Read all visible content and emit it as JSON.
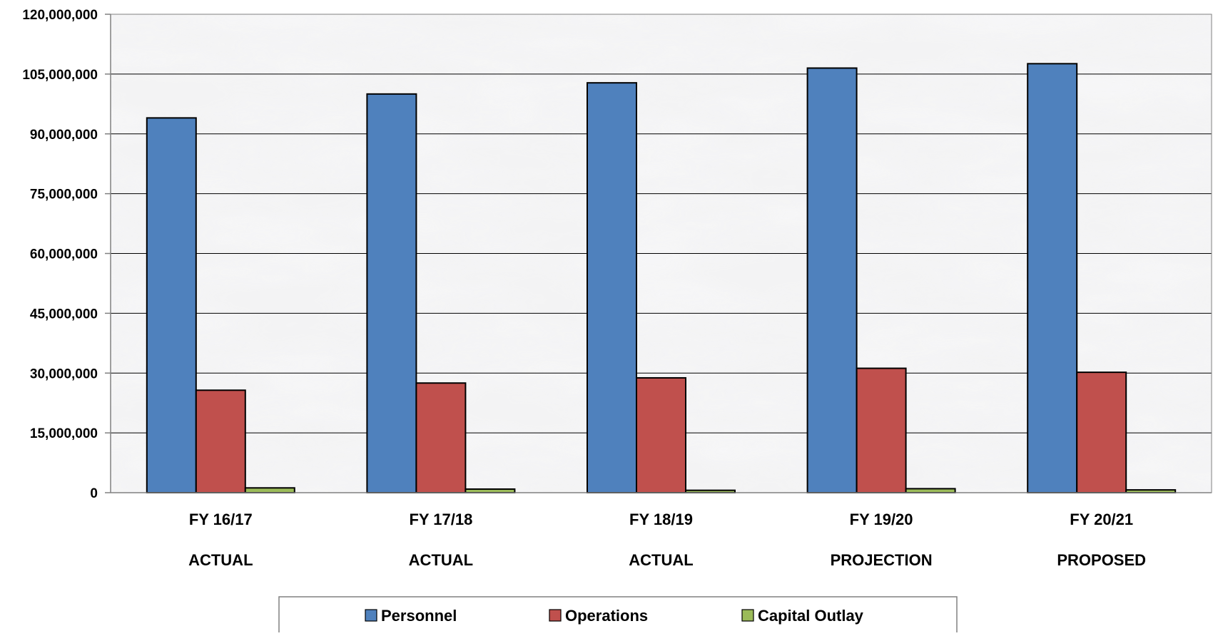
{
  "chart_data": {
    "type": "bar",
    "title": "",
    "xlabel": "",
    "ylabel": "",
    "categories": [
      "FY 16/17",
      "FY 17/18",
      "FY 18/19",
      "FY 19/20",
      "FY 20/21"
    ],
    "category_sublabels": [
      "ACTUAL",
      "ACTUAL",
      "ACTUAL",
      "PROJECTION",
      "PROPOSED"
    ],
    "series": [
      {
        "name": "Personnel",
        "color": "#4F81BD",
        "values": [
          94000000,
          100000000,
          102800000,
          106500000,
          107600000
        ]
      },
      {
        "name": "Operations",
        "color": "#C0504D",
        "values": [
          25700000,
          27500000,
          28800000,
          31200000,
          30200000
        ]
      },
      {
        "name": "Capital Outlay",
        "color": "#9BBB59",
        "values": [
          1200000,
          900000,
          600000,
          1000000,
          700000
        ]
      }
    ],
    "ylim": [
      0,
      120000000
    ],
    "yticks": [
      0,
      15000000,
      30000000,
      45000000,
      60000000,
      75000000,
      90000000,
      105000000,
      120000000
    ],
    "ytick_labels": [
      "0",
      "15,000,000",
      "30,000,000",
      "45,000,000",
      "60,000,000",
      "75,000,000",
      "90,000,000",
      "105,000,000",
      "120,000,000"
    ],
    "grid": true,
    "legend_position": "bottom",
    "background": "marble texture"
  }
}
